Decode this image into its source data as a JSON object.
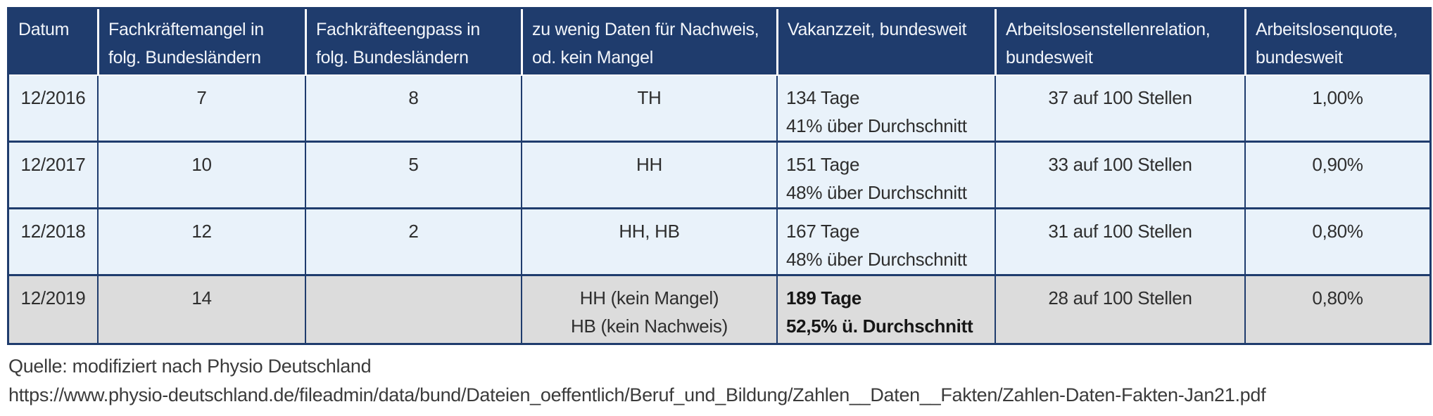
{
  "colors": {
    "header_bg": "#1f3c6d",
    "header_text": "#f2f5fa",
    "row_bg_light": "#e9f2fa",
    "row_bg_highlight": "#dcdcdc",
    "border": "#1f3c6d",
    "body_text": "#2e2e2e"
  },
  "table": {
    "columns": [
      {
        "label": "Datum"
      },
      {
        "label": "Fachkräftemangel in folg. Bundesländern"
      },
      {
        "label": "Fachkräfteengpass in folg. Bundesländern"
      },
      {
        "label": "zu wenig Daten für Nachweis, od. kein Mangel"
      },
      {
        "label": "Vakanzzeit, bundesweit"
      },
      {
        "label": "Arbeitslosenstellenrelation, bundesweit"
      },
      {
        "label": "Arbeitslosenquote, bundesweit"
      }
    ],
    "rows": [
      {
        "datum": "12/2016",
        "fachkraeftemangel": "7",
        "fachkraefteengpass": "8",
        "daten_line1": "TH",
        "daten_line2": "",
        "vakanzzeit_line1": "134 Tage",
        "vakanzzeit_line2": "41% über Durchschnitt",
        "relation": "37 auf 100 Stellen",
        "quote": "1,00%"
      },
      {
        "datum": "12/2017",
        "fachkraeftemangel": "10",
        "fachkraefteengpass": "5",
        "daten_line1": "HH",
        "daten_line2": "",
        "vakanzzeit_line1": "151 Tage",
        "vakanzzeit_line2": "48% über Durchschnitt",
        "relation": "33 auf 100 Stellen",
        "quote": "0,90%"
      },
      {
        "datum": "12/2018",
        "fachkraeftemangel": "12",
        "fachkraefteengpass": "2",
        "daten_line1": "HH, HB",
        "daten_line2": "",
        "vakanzzeit_line1": "167 Tage",
        "vakanzzeit_line2": "48% über Durchschnitt",
        "relation": "31 auf 100 Stellen",
        "quote": "0,80%"
      },
      {
        "datum": "12/2019",
        "fachkraeftemangel": "14",
        "fachkraefteengpass": "",
        "daten_line1": "HH (kein Mangel)",
        "daten_line2": "HB (kein Nachweis)",
        "vakanzzeit_line1": "189 Tage",
        "vakanzzeit_line2": "52,5% ü. Durchschnitt",
        "relation": "28 auf 100 Stellen",
        "quote": "0,80%"
      }
    ]
  },
  "source": {
    "line1": "Quelle: modifiziert nach Physio Deutschland",
    "line2": "https://www.physio-deutschland.de/fileadmin/data/bund/Dateien_oeffentlich/Beruf_und_Bildung/Zahlen__Daten__Fakten/Zahlen-Daten-Fakten-Jan21.pdf"
  },
  "chart_data": {
    "type": "table",
    "title": "",
    "columns": [
      "Datum",
      "Fachkräftemangel in folg. Bundesländern",
      "Fachkräfteengpass in folg. Bundesländern",
      "zu wenig Daten für Nachweis, od. kein Mangel",
      "Vakanzzeit, bundesweit",
      "Arbeitslosenstellenrelation, bundesweit",
      "Arbeitslosenquote, bundesweit"
    ],
    "rows": [
      [
        "12/2016",
        7,
        8,
        "TH",
        "134 Tage, 41% über Durchschnitt",
        "37 auf 100 Stellen",
        "1,00%"
      ],
      [
        "12/2017",
        10,
        5,
        "HH",
        "151 Tage, 48% über Durchschnitt",
        "33 auf 100 Stellen",
        "0,90%"
      ],
      [
        "12/2018",
        12,
        2,
        "HH, HB",
        "167 Tage, 48% über Durchschnitt",
        "31 auf 100 Stellen",
        "0,80%"
      ],
      [
        "12/2019",
        14,
        "",
        "HH (kein Mangel), HB (kein Nachweis)",
        "189 Tage, 52,5% ü. Durchschnitt",
        "28 auf 100 Stellen",
        "0,80%"
      ]
    ],
    "annotations": [
      "Row 12/2019 is highlighted grey; its Vakanzzeit value is bold",
      "Quelle: modifiziert nach Physio Deutschland"
    ]
  }
}
